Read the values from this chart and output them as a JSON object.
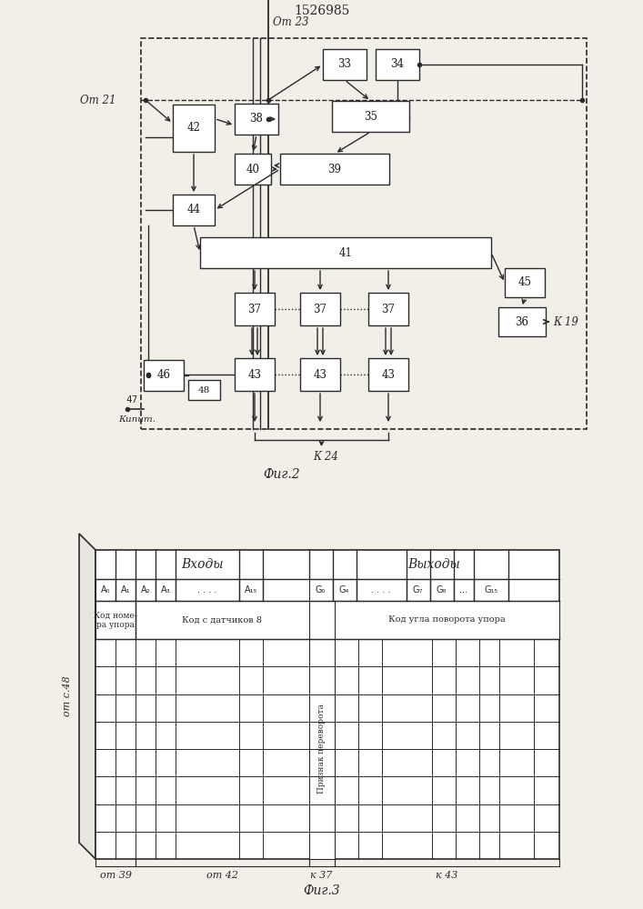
{
  "title": "1526985",
  "fig2_label": "Фиг.2",
  "fig3_label": "Фиг.3",
  "background": "#f2efe9",
  "line_color": "#2a2a2a",
  "box_color": "#ffffff",
  "text_color": "#1a1a1a"
}
